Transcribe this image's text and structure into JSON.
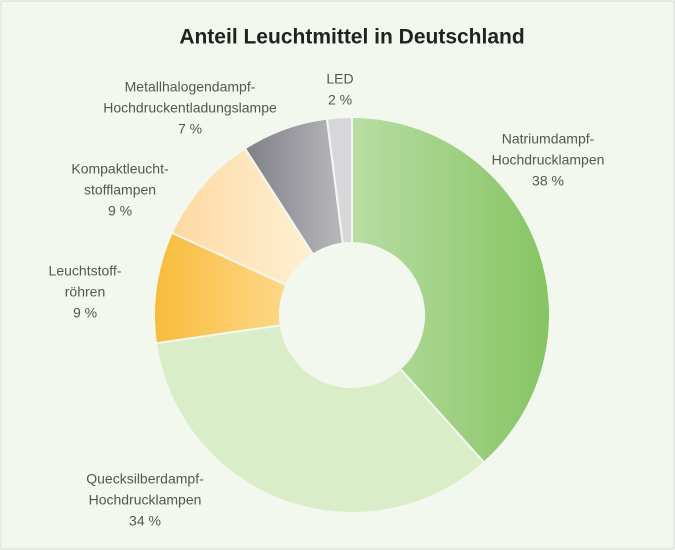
{
  "chart_data": {
    "type": "donut",
    "title": "Anteil Leuchtmittel in Deutschland",
    "categories": [
      [
        "Natriumdampf-",
        "Hochdrucklampen"
      ],
      [
        "Quecksilberdampf-",
        "Hochdrucklampen"
      ],
      [
        "Leuchtstoff-",
        "röhren"
      ],
      [
        "Kompaktleucht-",
        "stofflampen"
      ],
      [
        "Metallhalogendampf-",
        "Hochdruckentladungslampe"
      ],
      [
        "LED"
      ]
    ],
    "values": [
      38,
      34,
      9,
      9,
      7,
      2
    ],
    "value_labels": [
      "38 %",
      "34 %",
      "9 %",
      "9 %",
      "7 %",
      "2 %"
    ],
    "colors": [
      "#93cc72",
      "#d9edc9",
      "#f7b532",
      "#fde1b3",
      "#8f8f95",
      "#d7d7db"
    ]
  }
}
